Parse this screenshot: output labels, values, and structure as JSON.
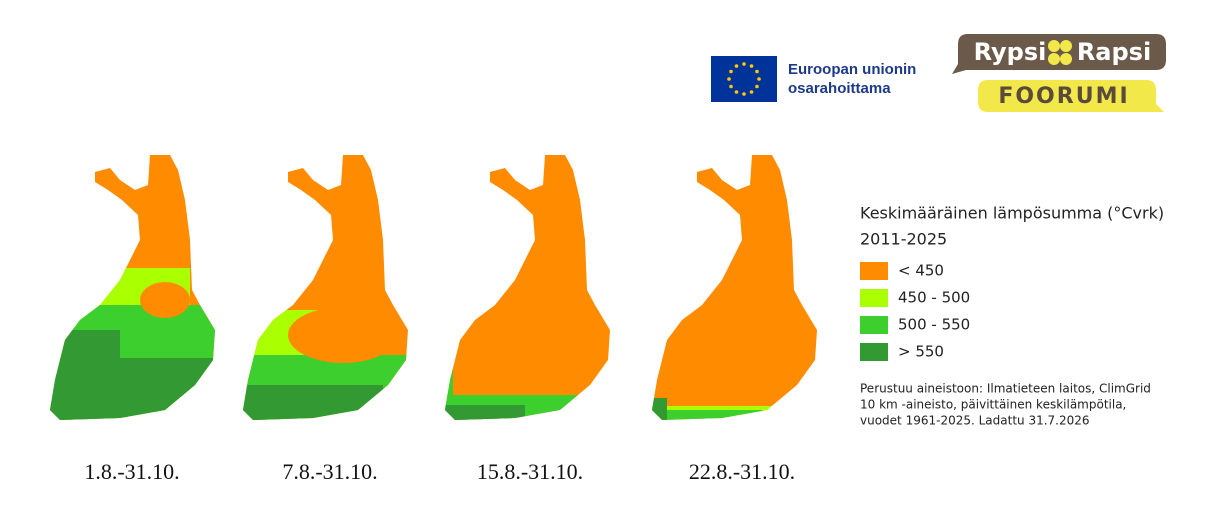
{
  "header": {
    "eu_line1": "Euroopan unionin",
    "eu_line2": "osarahoittama",
    "logo_left": "Rypsi",
    "logo_right": "Rapsi",
    "logo_bottom": "FOORUMI"
  },
  "panels": [
    {
      "label": "1.8.-31.10."
    },
    {
      "label": "7.8.-31.10."
    },
    {
      "label": "15.8.-31.10."
    },
    {
      "label": "22.8.-31.10."
    }
  ],
  "legend": {
    "title": "Keskimääräinen lämpösumma (°Cvrk)",
    "subtitle": "2011-2025",
    "items": [
      {
        "label": "< 450",
        "color": "#ff8c00"
      },
      {
        "label": "450 - 500",
        "color": "#aaff00"
      },
      {
        "label": "500 - 550",
        "color": "#3ccf2e"
      },
      {
        "label": "> 550",
        "color": "#339933"
      }
    ]
  },
  "note": {
    "lines": [
      "Perustuu aineistoon: Ilmatieteen laitos, ClimGrid",
      "10 km -aineisto, päivittäinen keskilämpötila,",
      "vuodet 1961-2025. Ladattu 31.7.2026"
    ]
  }
}
